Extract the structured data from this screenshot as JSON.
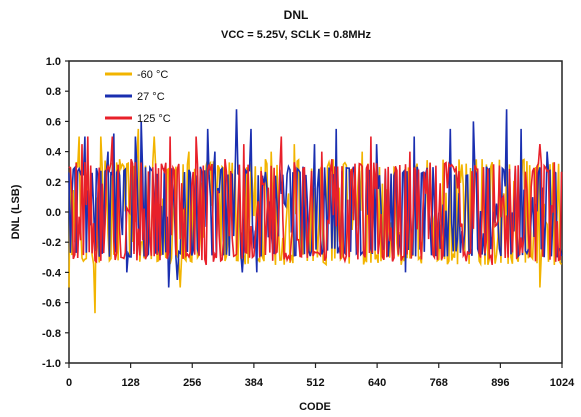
{
  "chart_data": {
    "type": "line",
    "title": "DNL",
    "subtitle": "VCC =  5.25V, SCLK = 0.8MHz",
    "xlabel": "CODE",
    "ylabel": "DNL (LSB)",
    "xlim": [
      0,
      1024
    ],
    "ylim": [
      -1.0,
      1.0
    ],
    "xticks": [
      0,
      128,
      256,
      384,
      512,
      640,
      768,
      896,
      1024
    ],
    "xtick_labels": [
      "0",
      "128",
      "256",
      "384",
      "512",
      "640",
      "768",
      "896",
      "1024"
    ],
    "yticks": [
      1.0,
      0.8,
      0.6,
      0.4,
      0.2,
      0.0,
      -0.2,
      -0.4,
      -0.6,
      -0.8,
      -1.0
    ],
    "ytick_labels": [
      "1.0",
      "0.8",
      "0.6",
      "0.4",
      "0.2",
      "0.0",
      "-0.2",
      "-0.4",
      "-0.6",
      "-0.8",
      "-1.0"
    ],
    "grid": false,
    "legend_position": "top-left",
    "colors": {
      "-60": "#f2b400",
      "27": "#1a2fb0",
      "125": "#e8202a"
    },
    "series": [
      {
        "name": "-60 °C",
        "color": "#f2b400",
        "peak_points": [
          [
            0,
            -0.5
          ],
          [
            12,
            -0.2
          ],
          [
            22,
            0.5
          ],
          [
            55,
            -0.67
          ],
          [
            68,
            0.5
          ],
          [
            145,
            0.55
          ],
          [
            150,
            -0.2
          ],
          [
            178,
            0.5
          ],
          [
            222,
            0.3
          ],
          [
            232,
            -0.5
          ],
          [
            250,
            0.4
          ],
          [
            330,
            -0.2
          ],
          [
            400,
            0.3
          ],
          [
            420,
            0.4
          ],
          [
            430,
            -0.35
          ],
          [
            470,
            0.45
          ],
          [
            480,
            -0.3
          ],
          [
            610,
            0.4
          ],
          [
            700,
            0.3
          ],
          [
            730,
            -0.3
          ],
          [
            860,
            0.35
          ],
          [
            877,
            0.3
          ],
          [
            980,
            -0.5
          ],
          [
            1010,
            -0.35
          ]
        ],
        "dense_range": [
          -0.35,
          0.35
        ]
      },
      {
        "name": "27 °C",
        "color": "#1a2fb0",
        "peak_points": [
          [
            15,
            -0.27
          ],
          [
            35,
            0.5
          ],
          [
            82,
            0.4
          ],
          [
            95,
            0.52
          ],
          [
            120,
            -0.4
          ],
          [
            139,
            0.5
          ],
          [
            150,
            0.6
          ],
          [
            208,
            -0.5
          ],
          [
            225,
            -0.45
          ],
          [
            290,
            0.55
          ],
          [
            305,
            0.4
          ],
          [
            348,
            0.68
          ],
          [
            362,
            -0.4
          ],
          [
            380,
            0.55
          ],
          [
            390,
            -0.4
          ],
          [
            456,
            0.3
          ],
          [
            510,
            0.45
          ],
          [
            555,
            0.55
          ],
          [
            592,
            0.3
          ],
          [
            640,
            0.45
          ],
          [
            700,
            -0.4
          ],
          [
            718,
            0.5
          ],
          [
            794,
            0.55
          ],
          [
            840,
            0.6
          ],
          [
            911,
            0.68
          ],
          [
            940,
            0.55
          ],
          [
            995,
            0.4
          ],
          [
            1015,
            -0.3
          ]
        ],
        "dense_range": [
          -0.3,
          0.3
        ]
      },
      {
        "name": "125 °C",
        "color": "#e8202a",
        "peak_points": [
          [
            28,
            0.45
          ],
          [
            40,
            0.5
          ],
          [
            90,
            0.5
          ],
          [
            110,
            -0.3
          ],
          [
            130,
            0.35
          ],
          [
            210,
            0.5
          ],
          [
            265,
            0.5
          ],
          [
            285,
            -0.35
          ],
          [
            325,
            0.35
          ],
          [
            365,
            0.45
          ],
          [
            441,
            0.5
          ],
          [
            527,
            0.4
          ],
          [
            548,
            0.35
          ],
          [
            628,
            0.5
          ],
          [
            710,
            0.4
          ],
          [
            880,
            -0.35
          ],
          [
            980,
            0.45
          ],
          [
            1010,
            0.33
          ]
        ],
        "dense_range": [
          -0.33,
          0.33
        ]
      }
    ]
  }
}
